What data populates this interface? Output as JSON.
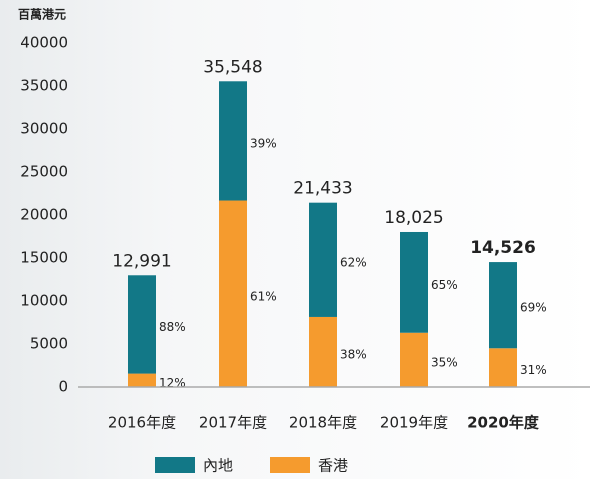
{
  "chart_data": {
    "type": "stacked_bar",
    "unit_label": "百萬港元",
    "categories": [
      "2016年度",
      "2017年度",
      "2018年度",
      "2019年度",
      "2020年度"
    ],
    "series": [
      {
        "name": "香港",
        "color": "#f59b2e",
        "values": [
          1559,
          21684,
          8145,
          6309,
          4503
        ],
        "share_labels": [
          "12%",
          "61%",
          "38%",
          "35%",
          "31%"
        ]
      },
      {
        "name": "內地",
        "color": "#127887",
        "values": [
          11432,
          13864,
          13288,
          11716,
          10023
        ],
        "share_labels": [
          "88%",
          "39%",
          "62%",
          "65%",
          "69%"
        ]
      }
    ],
    "totals": {
      "values": [
        12991,
        35548,
        21433,
        18025,
        14526
      ],
      "value_labels": [
        "12,991",
        "35,548",
        "21,433",
        "18,025",
        "14,526"
      ]
    },
    "ylim": [
      0,
      40000
    ],
    "yticks": [
      0,
      5000,
      10000,
      15000,
      20000,
      25000,
      30000,
      35000,
      40000
    ]
  }
}
